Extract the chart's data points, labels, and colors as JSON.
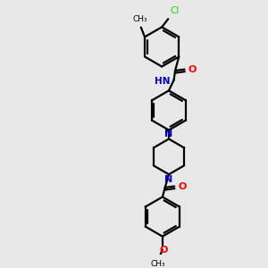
{
  "background_color": "#e8e8e8",
  "bond_color": "#000000",
  "N_color": "#0000cc",
  "O_color": "#ff0000",
  "Cl_color": "#33cc00",
  "figsize": [
    3.0,
    3.0
  ],
  "dpi": 100,
  "xlim": [
    0,
    10
  ],
  "ylim": [
    0,
    10
  ]
}
